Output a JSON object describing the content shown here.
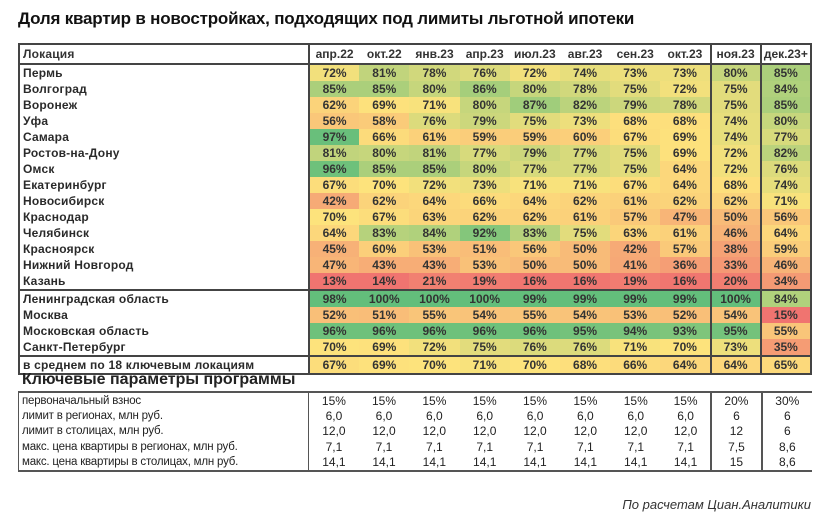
{
  "title": "Доля квартир в новостройках, подходящих под лимиты льготной ипотеки",
  "chart_data": {
    "type": "heatmap",
    "title": "Доля квартир в новостройках, подходящих под лимиты льготной ипотеки",
    "row_header": "Локация",
    "columns": [
      "апр.22",
      "окт.22",
      "янв.23",
      "апр.23",
      "июл.23",
      "авг.23",
      "сен.23",
      "окт.23",
      "ноя.23",
      "дек.23+"
    ],
    "groups": [
      {
        "rows": [
          {
            "label": "Пермь",
            "values": [
              72,
              81,
              78,
              76,
              72,
              74,
              73,
              73,
              80,
              85
            ]
          },
          {
            "label": "Волгоград",
            "values": [
              85,
              85,
              80,
              86,
              80,
              78,
              75,
              72,
              75,
              84
            ]
          },
          {
            "label": "Воронеж",
            "values": [
              62,
              69,
              71,
              80,
              87,
              82,
              79,
              78,
              75,
              85
            ]
          },
          {
            "label": "Уфа",
            "values": [
              56,
              58,
              76,
              79,
              75,
              73,
              68,
              68,
              74,
              80
            ]
          },
          {
            "label": "Самара",
            "values": [
              97,
              66,
              61,
              59,
              59,
              60,
              67,
              69,
              74,
              77
            ]
          },
          {
            "label": "Ростов-на-Дону",
            "values": [
              81,
              80,
              81,
              77,
              79,
              77,
              75,
              69,
              72,
              82
            ]
          },
          {
            "label": "Омск",
            "values": [
              96,
              85,
              85,
              80,
              77,
              77,
              75,
              64,
              72,
              76
            ]
          },
          {
            "label": "Екатеринбург",
            "values": [
              67,
              70,
              72,
              73,
              71,
              71,
              67,
              64,
              68,
              74
            ]
          },
          {
            "label": "Новосибирск",
            "values": [
              42,
              62,
              64,
              66,
              64,
              62,
              61,
              62,
              62,
              71
            ]
          },
          {
            "label": "Краснодар",
            "values": [
              70,
              67,
              63,
              62,
              62,
              61,
              57,
              47,
              50,
              56
            ]
          },
          {
            "label": "Челябинск",
            "values": [
              64,
              83,
              84,
              92,
              83,
              75,
              63,
              61,
              46,
              64
            ]
          },
          {
            "label": "Красноярск",
            "values": [
              45,
              60,
              53,
              51,
              56,
              50,
              42,
              57,
              38,
              59
            ]
          },
          {
            "label": "Нижний Новгород",
            "values": [
              47,
              43,
              43,
              53,
              50,
              50,
              41,
              36,
              33,
              46
            ]
          },
          {
            "label": "Казань",
            "values": [
              13,
              14,
              21,
              19,
              16,
              16,
              19,
              16,
              20,
              34
            ]
          }
        ]
      },
      {
        "rows": [
          {
            "label": "Ленинградская область",
            "values": [
              98,
              100,
              100,
              100,
              99,
              99,
              99,
              99,
              100,
              84
            ]
          },
          {
            "label": "Москва",
            "values": [
              52,
              51,
              55,
              54,
              55,
              54,
              53,
              52,
              54,
              15
            ]
          },
          {
            "label": "Московская область",
            "values": [
              96,
              96,
              96,
              96,
              96,
              95,
              94,
              93,
              95,
              55
            ]
          },
          {
            "label": "Санкт-Петербург",
            "values": [
              70,
              69,
              72,
              75,
              76,
              76,
              71,
              70,
              73,
              35
            ]
          }
        ]
      },
      {
        "rows": [
          {
            "label": "в среднем по 18 ключевым локациям",
            "values": [
              67,
              69,
              70,
              71,
              70,
              68,
              66,
              64,
              64,
              65
            ]
          }
        ]
      }
    ],
    "unit": "%",
    "color_scale": {
      "low": "#f07470",
      "mid": "#fde37c",
      "high": "#63be7b"
    }
  },
  "params": {
    "title": "Ключевые параметры программы",
    "rows": [
      {
        "label": "первоначальный взнос",
        "values": [
          "15%",
          "15%",
          "15%",
          "15%",
          "15%",
          "15%",
          "15%",
          "15%",
          "20%",
          "30%"
        ]
      },
      {
        "label": "лимит в регионах, млн руб.",
        "values": [
          "6,0",
          "6,0",
          "6,0",
          "6,0",
          "6,0",
          "6,0",
          "6,0",
          "6,0",
          "6",
          "6"
        ]
      },
      {
        "label": "лимит в столицах, млн руб.",
        "values": [
          "12,0",
          "12,0",
          "12,0",
          "12,0",
          "12,0",
          "12,0",
          "12,0",
          "12,0",
          "12",
          "6"
        ]
      },
      {
        "label": "макс. цена квартиры в регионах, млн руб.",
        "values": [
          "7,1",
          "7,1",
          "7,1",
          "7,1",
          "7,1",
          "7,1",
          "7,1",
          "7,1",
          "7,5",
          "8,6"
        ]
      },
      {
        "label": "макс. цена квартиры в столицах, млн руб.",
        "values": [
          "14,1",
          "14,1",
          "14,1",
          "14,1",
          "14,1",
          "14,1",
          "14,1",
          "14,1",
          "15",
          "8,6"
        ]
      }
    ]
  },
  "source": "По расчетам Циан.Аналитики"
}
